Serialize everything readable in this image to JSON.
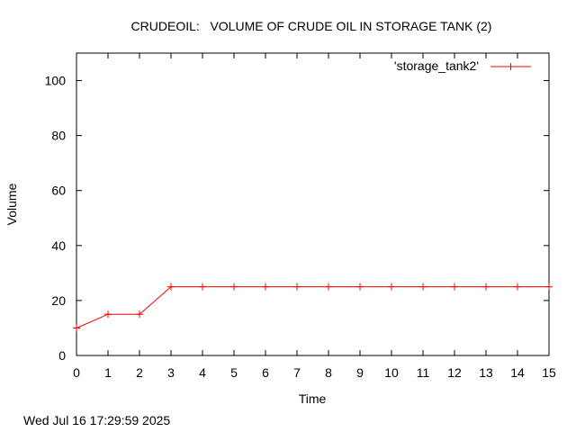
{
  "chart_data": {
    "type": "line",
    "title": "CRUDEOIL:   VOLUME OF CRUDE OIL IN STORAGE TANK (2)",
    "xlabel": "Time",
    "ylabel": "Volume",
    "xlim": [
      0,
      15
    ],
    "ylim": [
      0,
      110
    ],
    "xticks": [
      0,
      1,
      2,
      3,
      4,
      5,
      6,
      7,
      8,
      9,
      10,
      11,
      12,
      13,
      14,
      15
    ],
    "yticks": [
      0,
      20,
      40,
      60,
      80,
      100
    ],
    "grid": false,
    "legend_position": "top-right",
    "series": [
      {
        "name": "'storage_tank2'",
        "color": "#ff0000",
        "marker": "plus",
        "x": [
          0,
          1,
          2,
          3,
          4,
          5,
          6,
          7,
          8,
          9,
          10,
          11,
          12,
          13,
          14,
          15
        ],
        "y": [
          10,
          15,
          15,
          25,
          25,
          25,
          25,
          25,
          25,
          25,
          25,
          25,
          25,
          25,
          25,
          25
        ]
      }
    ]
  },
  "footer": {
    "timestamp": "Wed Jul 16 17:29:59 2025"
  }
}
